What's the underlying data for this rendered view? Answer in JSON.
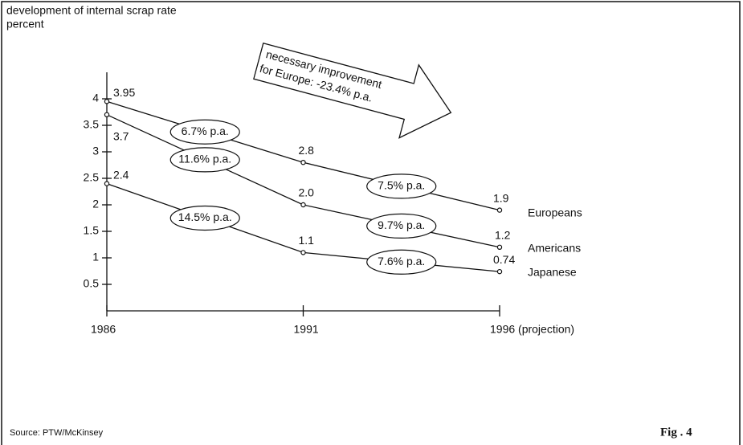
{
  "chart_data": {
    "type": "line",
    "title": "development of internal scrap rate",
    "y_label": "percent",
    "categories": [
      "1986",
      "1991",
      "1996 (projection)"
    ],
    "series": [
      {
        "name": "Europeans",
        "color": "#111111",
        "values": [
          3.95,
          2.8,
          1.9
        ],
        "value_labels": [
          "3.95",
          "2.8",
          "1.9"
        ],
        "rate_labels": [
          "6.7% p.a.",
          "7.5% p.a."
        ]
      },
      {
        "name": "Americans",
        "color": "#111111",
        "values": [
          3.7,
          2.0,
          1.2
        ],
        "value_labels": [
          "3.7",
          "2.0",
          "1.2"
        ],
        "rate_labels": [
          "11.6% p.a.",
          "9.7% p.a."
        ]
      },
      {
        "name": "Japanese",
        "color": "#111111",
        "values": [
          2.4,
          1.1,
          0.74
        ],
        "value_labels": [
          "2.4",
          "1.1",
          "0.74"
        ],
        "rate_labels": [
          "14.5% p.a.",
          "7.6% p.a."
        ]
      }
    ],
    "ylim": [
      0,
      4.5
    ],
    "yticks": [
      0.5,
      1,
      1.5,
      2,
      2.5,
      3,
      3.5,
      4
    ],
    "annotation": [
      "necessary improvement",
      "for Europe: -23.4% p.a."
    ],
    "source": "Source: PTW/McKinsey",
    "figure": "Fig . 4"
  }
}
